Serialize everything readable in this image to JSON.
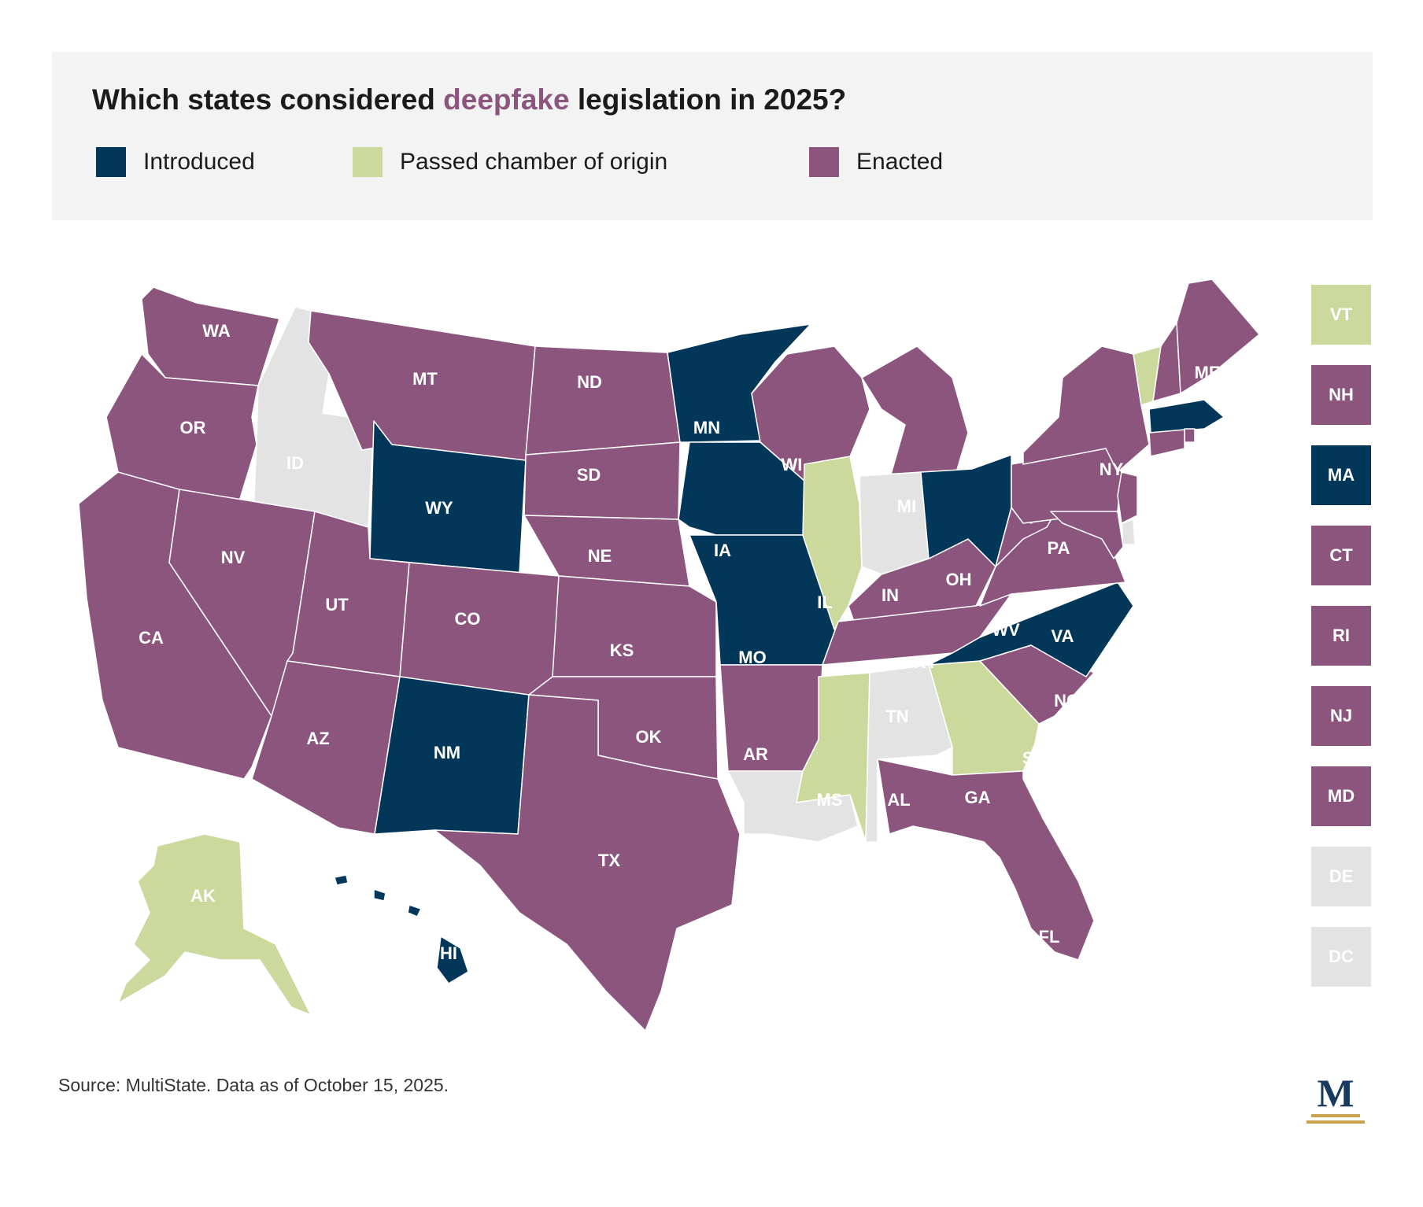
{
  "title": {
    "before": "Which states considered ",
    "highlight": "deepfake",
    "after": " legislation in 2025?"
  },
  "colors": {
    "introduced": "#03375a",
    "passed": "#cbd99d",
    "enacted": "#8b557d",
    "none": "#e3e3e3",
    "title_highlight": "#8b557d"
  },
  "legend": [
    {
      "label": "Introduced",
      "color": "#03375a"
    },
    {
      "label": "Passed chamber of origin",
      "color": "#cbd99d"
    },
    {
      "label": "Enacted",
      "color": "#8b557d"
    }
  ],
  "states": {
    "WA": "enacted",
    "OR": "enacted",
    "CA": "enacted",
    "ID": "none",
    "NV": "enacted",
    "MT": "enacted",
    "WY": "introduced",
    "UT": "enacted",
    "AZ": "enacted",
    "CO": "enacted",
    "NM": "introduced",
    "ND": "enacted",
    "SD": "enacted",
    "NE": "enacted",
    "KS": "enacted",
    "OK": "enacted",
    "TX": "enacted",
    "MN": "introduced",
    "IA": "introduced",
    "MO": "introduced",
    "AR": "enacted",
    "LA": "none",
    "WI": "enacted",
    "IL": "passed",
    "MS": "passed",
    "MI": "enacted",
    "IN": "none",
    "KY": "enacted",
    "TN": "enacted",
    "AL": "none",
    "OH": "introduced",
    "GA": "passed",
    "FL": "enacted",
    "SC": "enacted",
    "NC": "introduced",
    "VA": "enacted",
    "WV": "enacted",
    "PA": "enacted",
    "NY": "enacted",
    "ME": "enacted",
    "VT": "passed",
    "NH": "enacted",
    "MA": "introduced",
    "RI": "enacted",
    "CT": "enacted",
    "NJ": "enacted",
    "DE": "none",
    "MD": "enacted",
    "DC": "none",
    "AK": "passed",
    "HI": "introduced"
  },
  "small_states": [
    {
      "code": "VT",
      "status": "passed"
    },
    {
      "code": "NH",
      "status": "enacted"
    },
    {
      "code": "MA",
      "status": "introduced"
    },
    {
      "code": "CT",
      "status": "enacted"
    },
    {
      "code": "RI",
      "status": "enacted"
    },
    {
      "code": "NJ",
      "status": "enacted"
    },
    {
      "code": "MD",
      "status": "enacted"
    },
    {
      "code": "DE",
      "status": "none"
    },
    {
      "code": "DC",
      "status": "none"
    }
  ],
  "source": "Source: MultiState. Data as of October 15, 2025.",
  "logo": {
    "letter": "M"
  }
}
